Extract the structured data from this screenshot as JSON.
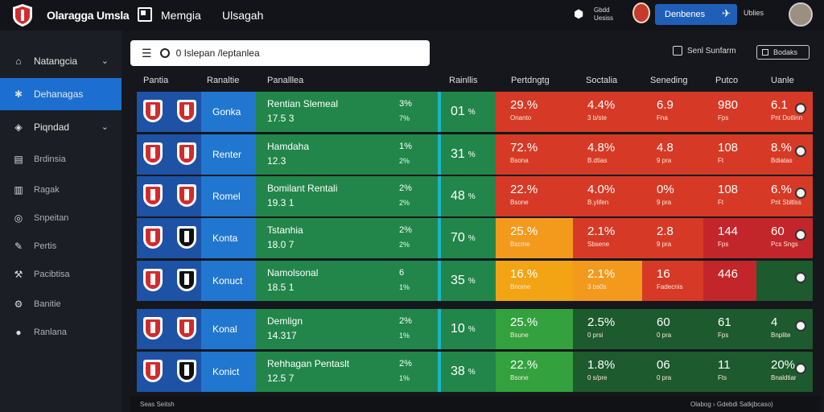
{
  "topbar": {
    "app_title": "Olaragga Umsla",
    "nav1": "Memgia",
    "nav2": "Ulsagah",
    "small_text": "Gbdd\nUesiss",
    "button_label": "Denbenes",
    "user_label": "Ublies"
  },
  "sidebar": {
    "items": [
      {
        "label": "Natangcia",
        "icon": "home-icon"
      },
      {
        "label": "Dehanagas",
        "icon": "gear-icon"
      },
      {
        "label": "Piqndad",
        "icon": "tag-icon"
      },
      {
        "label": "Brdinsia",
        "icon": "grid-icon"
      },
      {
        "label": "Ragak",
        "icon": "chart-icon"
      },
      {
        "label": "Snpeitan",
        "icon": "target-icon"
      },
      {
        "label": "Pertis",
        "icon": "pen-icon"
      },
      {
        "label": "Pacibtisa",
        "icon": "wrench-icon"
      },
      {
        "label": "Banitie",
        "icon": "cog-icon"
      },
      {
        "label": "Ranlana",
        "icon": "circle-icon"
      }
    ]
  },
  "search": {
    "value": "0 Islepan /leptanlea"
  },
  "toolbar": {
    "sort_label": "Senl Sunfarm",
    "filter_label": "Bodaks"
  },
  "headers": [
    "Pantia",
    "Ranaltie",
    "Panalllea",
    "Rainllis",
    "Pertdngtg",
    "Soctalia",
    "Seneding",
    "Putco",
    "Uanle"
  ],
  "rows": [
    {
      "team": "Gonka",
      "name": "Rentian Slemeal",
      "num": "17.5 3",
      "pct1": "3%",
      "pct2": "7%",
      "rank": "01",
      "x": "29.%",
      "xs": "Onanto",
      "y": "4.4%",
      "ys": "3 b/ste",
      "z": "6.9",
      "zs": "Fna",
      "w": "980",
      "ws": "Fps",
      "v": "6.1",
      "vs": "Pnt Dotlinn",
      "shield2": "red"
    },
    {
      "team": "Renter",
      "name": "Hamdaha",
      "num": "12.3",
      "pct1": "1%",
      "pct2": "2%",
      "rank": "31",
      "x": "72.%",
      "xs": "Bsona",
      "y": "4.8%",
      "ys": "B.dtias",
      "z": "4.8",
      "zs": "9 pra",
      "w": "108",
      "ws": "Ft",
      "v": "8.%",
      "vs": "Bdiatas",
      "shield2": "red"
    },
    {
      "team": "Romel",
      "name": "Bomilant Rentali",
      "num": "19.3 1",
      "pct1": "2%",
      "pct2": "2%",
      "rank": "48",
      "x": "22.%",
      "xs": "Bsone",
      "y": "4.0%",
      "ys": "B.ylifen",
      "z": "0%",
      "zs": "9 pra",
      "w": "108",
      "ws": "Ft",
      "v": "6.%",
      "vs": "Pnt Sbltlss",
      "shield2": "red"
    },
    {
      "team": "Konta",
      "name": "Tstanhia",
      "num": "18.0 7",
      "pct1": "2%",
      "pct2": "2%",
      "rank": "70",
      "x": "25.%",
      "xs": "Bscme",
      "y": "2.1%",
      "ys": "Sbsene",
      "z": "2.8",
      "zs": "9 pra",
      "w": "144",
      "ws": "Fps",
      "v": "60",
      "vs": "Pcs Sngs",
      "shield2": "black"
    },
    {
      "team": "Konuct",
      "name": "Namolsonal",
      "num": "18.5 1",
      "pct1": "6",
      "pct2": "1%",
      "rank": "35",
      "x": "16.%",
      "xs": "Bnome",
      "y": "2.1%",
      "ys": "3 bs0s",
      "z": "16",
      "zs": "Fadecnis",
      "w": "446",
      "ws": "",
      "v": "",
      "vs": "",
      "shield2": "black"
    },
    {
      "team": "Konal",
      "name": "Demlign",
      "num": "14.317",
      "pct1": "2%",
      "pct2": "1%",
      "rank": "10",
      "x": "25.%",
      "xs": "Bsune",
      "y": "2.5%",
      "ys": "0 prsi",
      "z": "60",
      "zs": "0 pra",
      "w": "61",
      "ws": "Fps",
      "v": "4",
      "vs": "Bnplite",
      "shield2": "red"
    },
    {
      "team": "Konict",
      "name": "Rehhagan Pentaslt",
      "num": "12.5 7",
      "pct1": "2%",
      "pct2": "1%",
      "rank": "38",
      "x": "22.%",
      "xs": "Bsone",
      "y": "1.8%",
      "ys": "0 s/pre",
      "z": "06",
      "zs": "0 pra",
      "w": "11",
      "ws": "Fts",
      "v": "20%",
      "vs": "Bnaldtiar",
      "shield2": "black"
    }
  ],
  "footer": {
    "left": "Seas Seitsh",
    "right": "Olabog  ›  Gdebdi Satkjbcaso)"
  },
  "colors": {
    "accent": "#1c6fd0",
    "sidebar": "#1b1e24",
    "red": "#d63a26",
    "green": "#22864a",
    "orange": "#f39a1d"
  }
}
